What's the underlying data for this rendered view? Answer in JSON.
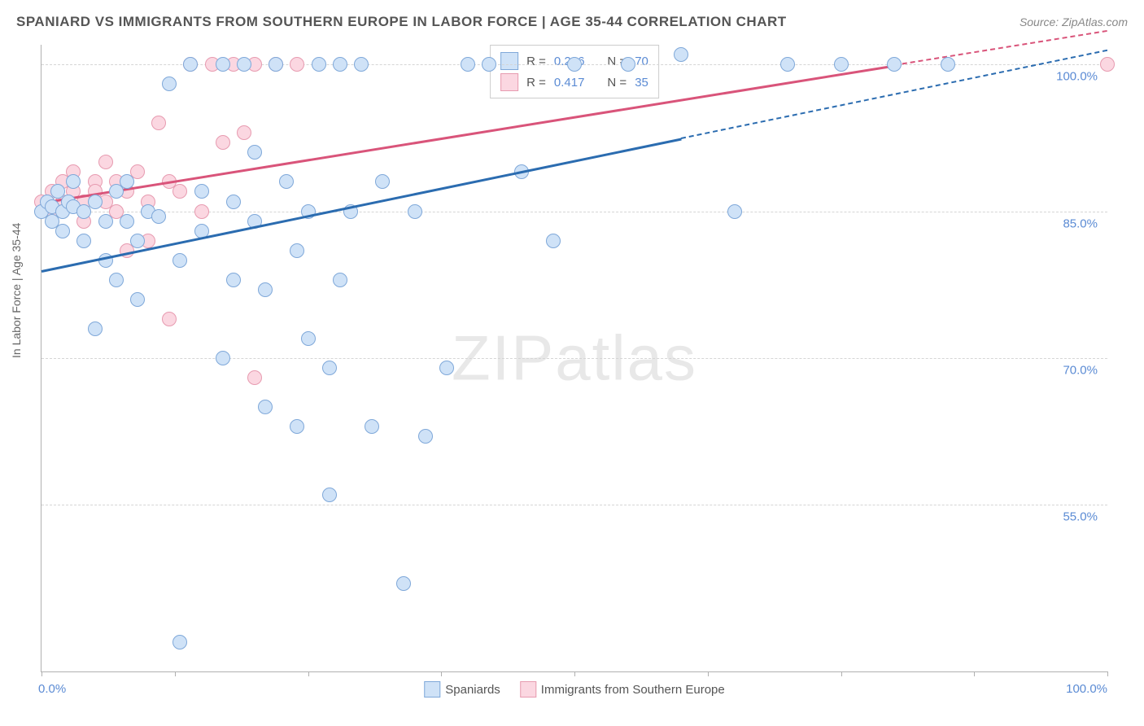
{
  "header": {
    "title": "SPANIARD VS IMMIGRANTS FROM SOUTHERN EUROPE IN LABOR FORCE | AGE 35-44 CORRELATION CHART",
    "source": "Source: ZipAtlas.com"
  },
  "watermark": {
    "zip": "ZIP",
    "atlas": "atlas"
  },
  "chart": {
    "type": "scatter",
    "ylabel": "In Labor Force | Age 35-44",
    "xlim": [
      0,
      100
    ],
    "ylim": [
      38,
      102
    ],
    "x_ticks": [
      0,
      12.5,
      25,
      37.5,
      50,
      62.5,
      75,
      87.5,
      100
    ],
    "x_tick_labels": {
      "0": "0.0%",
      "100": "100.0%"
    },
    "y_gridlines": [
      55,
      70,
      85,
      100
    ],
    "y_tick_labels": {
      "55": "55.0%",
      "70": "70.0%",
      "85": "85.0%",
      "100": "100.0%"
    },
    "background_color": "#ffffff",
    "grid_color": "#d5d5d5",
    "axis_color": "#b0b0b0",
    "label_color": "#666666",
    "tick_label_color": "#5b8bd4",
    "label_fontsize": 14,
    "tick_fontsize": 15,
    "marker_radius": 9,
    "series": {
      "spaniards": {
        "label": "Spaniards",
        "fill": "#cfe2f7",
        "stroke": "#7fa8d9",
        "line_color": "#2b6cb0",
        "r_value": "0.296",
        "n_value": "70",
        "trend": {
          "x1": 0,
          "y1": 79,
          "x2": 60,
          "y2": 92.5,
          "dash_x2": 100,
          "dash_y2": 101.5
        },
        "points": [
          [
            0,
            85
          ],
          [
            0.5,
            86
          ],
          [
            1,
            85.5
          ],
          [
            1,
            84
          ],
          [
            1.5,
            87
          ],
          [
            2,
            85
          ],
          [
            2,
            83
          ],
          [
            2.5,
            86
          ],
          [
            3,
            85.5
          ],
          [
            3,
            88
          ],
          [
            4,
            85
          ],
          [
            4,
            82
          ],
          [
            5,
            73
          ],
          [
            5,
            86
          ],
          [
            6,
            84
          ],
          [
            6,
            80
          ],
          [
            7,
            87
          ],
          [
            7,
            78
          ],
          [
            8,
            84
          ],
          [
            8,
            88
          ],
          [
            9,
            82
          ],
          [
            9,
            76
          ],
          [
            10,
            85
          ],
          [
            11,
            84.5
          ],
          [
            12,
            98
          ],
          [
            13,
            80
          ],
          [
            13,
            41
          ],
          [
            14,
            100
          ],
          [
            15,
            83
          ],
          [
            15,
            87
          ],
          [
            17,
            70
          ],
          [
            17,
            100
          ],
          [
            18,
            86
          ],
          [
            18,
            78
          ],
          [
            19,
            100
          ],
          [
            20,
            91
          ],
          [
            20,
            84
          ],
          [
            21,
            77
          ],
          [
            21,
            65
          ],
          [
            22,
            100
          ],
          [
            23,
            88
          ],
          [
            24,
            81
          ],
          [
            24,
            63
          ],
          [
            25,
            85
          ],
          [
            25,
            72
          ],
          [
            26,
            100
          ],
          [
            27,
            69
          ],
          [
            27,
            56
          ],
          [
            28,
            100
          ],
          [
            28,
            78
          ],
          [
            29,
            85
          ],
          [
            30,
            100
          ],
          [
            31,
            63
          ],
          [
            32,
            88
          ],
          [
            34,
            47
          ],
          [
            35,
            85
          ],
          [
            36,
            62
          ],
          [
            38,
            69
          ],
          [
            40,
            100
          ],
          [
            42,
            100
          ],
          [
            45,
            89
          ],
          [
            48,
            82
          ],
          [
            50,
            100
          ],
          [
            55,
            100
          ],
          [
            60,
            101
          ],
          [
            65,
            85
          ],
          [
            70,
            100
          ],
          [
            75,
            100
          ],
          [
            80,
            100
          ],
          [
            85,
            100
          ]
        ]
      },
      "immigrants": {
        "label": "Immigrants from Southern Europe",
        "fill": "#fbd7e1",
        "stroke": "#e79bb0",
        "line_color": "#d9547a",
        "r_value": "0.417",
        "n_value": "35",
        "trend": {
          "x1": 0,
          "y1": 86,
          "x2": 80,
          "y2": 100,
          "dash_x2": 100,
          "dash_y2": 103.5
        },
        "points": [
          [
            0,
            86
          ],
          [
            1,
            87
          ],
          [
            1,
            85
          ],
          [
            2,
            88
          ],
          [
            2,
            86
          ],
          [
            3,
            87
          ],
          [
            3,
            89
          ],
          [
            4,
            86
          ],
          [
            4,
            84
          ],
          [
            5,
            88
          ],
          [
            5,
            87
          ],
          [
            6,
            86
          ],
          [
            6,
            90
          ],
          [
            7,
            85
          ],
          [
            7,
            88
          ],
          [
            8,
            87
          ],
          [
            8,
            81
          ],
          [
            9,
            89
          ],
          [
            10,
            86
          ],
          [
            10,
            82
          ],
          [
            11,
            94
          ],
          [
            12,
            88
          ],
          [
            12,
            74
          ],
          [
            13,
            87
          ],
          [
            14,
            100
          ],
          [
            15,
            85
          ],
          [
            16,
            100
          ],
          [
            17,
            92
          ],
          [
            18,
            100
          ],
          [
            19,
            93
          ],
          [
            20,
            100
          ],
          [
            20,
            68
          ],
          [
            22,
            100
          ],
          [
            24,
            100
          ],
          [
            100,
            100
          ]
        ]
      }
    },
    "legend_top": {
      "r_label": "R =",
      "n_label": "N ="
    },
    "legend_bottom_order": [
      "spaniards",
      "immigrants"
    ]
  }
}
